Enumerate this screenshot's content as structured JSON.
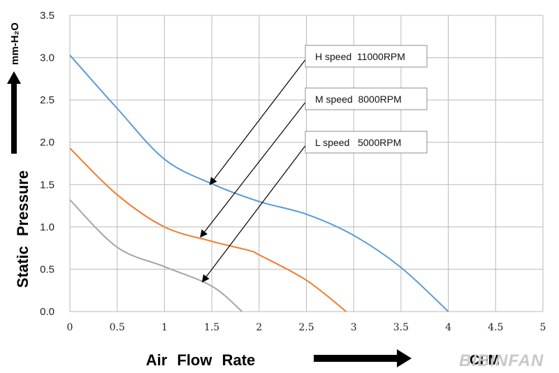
{
  "chart_data": {
    "type": "line",
    "xlabel": "Air Flow Rate",
    "ylabel": "Static Pressure",
    "x_unit": "CFM",
    "y_unit": "mm-H₂O",
    "xlim": [
      0,
      5
    ],
    "ylim": [
      0,
      3.5
    ],
    "x_ticks": [
      "0",
      "0.5",
      "1",
      "1.5",
      "2",
      "2.5",
      "3",
      "3.5",
      "4",
      "4.5",
      "5"
    ],
    "y_ticks": [
      "0.0",
      "0.5",
      "1.0",
      "1.5",
      "2.0",
      "2.5",
      "3.0",
      "3.5"
    ],
    "grid": true,
    "series": [
      {
        "name": "H speed 11000RPM",
        "color": "#5b9bd5",
        "points": [
          [
            0,
            3.03
          ],
          [
            0.5,
            2.4
          ],
          [
            1.0,
            1.8
          ],
          [
            1.5,
            1.51
          ],
          [
            2.0,
            1.3
          ],
          [
            2.5,
            1.15
          ],
          [
            3.0,
            0.9
          ],
          [
            3.5,
            0.52
          ],
          [
            4.0,
            0.0
          ]
        ]
      },
      {
        "name": "M speed 8000RPM",
        "color": "#ed7d31",
        "points": [
          [
            0,
            1.93
          ],
          [
            0.5,
            1.38
          ],
          [
            1.0,
            1.0
          ],
          [
            1.5,
            0.83
          ],
          [
            1.9,
            0.72
          ],
          [
            2.0,
            0.67
          ],
          [
            2.5,
            0.37
          ],
          [
            2.92,
            0.0
          ]
        ]
      },
      {
        "name": "L speed 5000RPM",
        "color": "#a5a5a5",
        "points": [
          [
            0,
            1.32
          ],
          [
            0.5,
            0.76
          ],
          [
            1.0,
            0.53
          ],
          [
            1.5,
            0.3
          ],
          [
            1.82,
            0.0
          ]
        ]
      }
    ],
    "annotations": [
      {
        "text": "H speed  11000RPM",
        "series": 0,
        "target": [
          1.48,
          1.5
        ]
      },
      {
        "text": "M speed  8000RPM",
        "series": 1,
        "target": [
          1.38,
          0.88
        ]
      },
      {
        "text": "L speed   5000RPM",
        "series": 2,
        "target": [
          1.4,
          0.35
        ]
      }
    ]
  },
  "brand_logo": "BIBINFAN"
}
